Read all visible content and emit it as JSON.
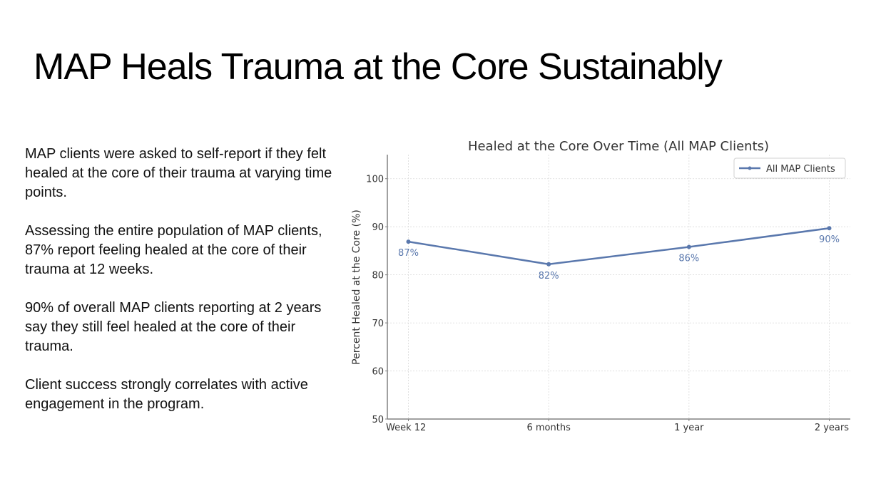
{
  "slide": {
    "title": "MAP Heals Trauma at the Core Sustainably",
    "paragraphs": [
      "MAP clients were asked to self-report if they felt healed at the core of their trauma at varying time points.",
      "Assessing the entire population of MAP clients, 87% report feeling healed at the core of their trauma at 12 weeks.",
      "90% of overall MAP clients reporting at 2 years say they still feel healed at the core of their trauma.",
      "Client success strongly correlates with active engagement in the program."
    ]
  },
  "colors": {
    "series": "#5a78ad",
    "axis": "#808080",
    "grid": "#d9d9d9",
    "text": "#333333"
  },
  "chart_data": {
    "type": "line",
    "title": "Healed at the Core Over Time (All MAP Clients)",
    "xlabel": "",
    "ylabel": "Percent Healed at the Core (%)",
    "categories": [
      "Week 12",
      "6 months",
      "1 year",
      "2 years"
    ],
    "series": [
      {
        "name": "All MAP Clients",
        "values": [
          86.9,
          82.2,
          85.8,
          89.7
        ],
        "labels": [
          "87%",
          "82%",
          "86%",
          "90%"
        ]
      }
    ],
    "ylim": [
      50,
      105
    ],
    "xlim": [
      -0.15,
      3.15
    ],
    "yticks": [
      50,
      60,
      70,
      80,
      90,
      100
    ],
    "grid": true,
    "legend": "top-right"
  }
}
